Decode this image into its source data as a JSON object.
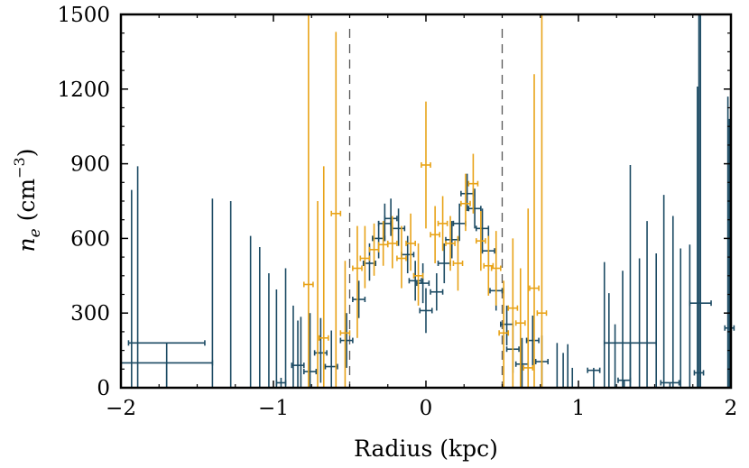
{
  "chart_data": {
    "type": "scatter",
    "title": "",
    "xlabel": "Radius (kpc)",
    "ylabel_main": "n",
    "ylabel_sub": "e",
    "ylabel_unit_open": " (cm",
    "ylabel_unit_sup": "−3",
    "ylabel_unit_close": ")",
    "xlim": [
      -2,
      2
    ],
    "ylim": [
      0,
      1500
    ],
    "xticks": [
      -2,
      -1,
      0,
      1,
      2
    ],
    "xtick_labels": [
      "−2",
      "−1",
      "0",
      "1",
      "2"
    ],
    "yticks": [
      0,
      300,
      600,
      900,
      1200,
      1500
    ],
    "ytick_labels": [
      "0",
      "300",
      "600",
      "900",
      "1200",
      "1500"
    ],
    "vlines": [
      -0.5,
      0.5
    ],
    "colors": {
      "blue": "#1b4a63",
      "orange": "#e8a318",
      "vline": "#555555"
    },
    "series": [
      {
        "name": "blue",
        "color": "#1b4a63",
        "points": [
          {
            "x": -1.7,
            "y": 180,
            "xerr": 0.25,
            "ylo": 0,
            "yhi": 180
          },
          {
            "x": -1.7,
            "y": 100,
            "xerr": 0.3,
            "ylo": 0,
            "yhi": 100
          },
          {
            "x": -1.93,
            "y": 0,
            "xerr": 0.02,
            "ylo": 0,
            "yhi": 795
          },
          {
            "x": -1.89,
            "y": 0,
            "xerr": 0.02,
            "ylo": 0,
            "yhi": 890
          },
          {
            "x": -1.4,
            "y": 0,
            "xerr": 0.02,
            "ylo": 0,
            "yhi": 760
          },
          {
            "x": -1.28,
            "y": 0,
            "xerr": 0.02,
            "ylo": 0,
            "yhi": 750
          },
          {
            "x": -1.15,
            "y": 0,
            "xerr": 0.02,
            "ylo": 0,
            "yhi": 610
          },
          {
            "x": -1.09,
            "y": 0,
            "xerr": 0.02,
            "ylo": 0,
            "yhi": 565
          },
          {
            "x": -1.03,
            "y": 0,
            "xerr": 0.02,
            "ylo": 0,
            "yhi": 460
          },
          {
            "x": -0.98,
            "y": 0,
            "xerr": 0.02,
            "ylo": 0,
            "yhi": 395
          },
          {
            "x": -0.92,
            "y": 0,
            "xerr": 0.02,
            "ylo": 0,
            "yhi": 480
          },
          {
            "x": -0.87,
            "y": 0,
            "xerr": 0.02,
            "ylo": 0,
            "yhi": 330
          },
          {
            "x": -0.82,
            "y": 0,
            "xerr": 0.02,
            "ylo": 0,
            "yhi": 285
          },
          {
            "x": -0.95,
            "y": 20,
            "xerr": 0.03,
            "ylo": 0,
            "yhi": 40
          },
          {
            "x": -0.84,
            "y": 90,
            "xerr": 0.04,
            "ylo": 0,
            "yhi": 270
          },
          {
            "x": -0.76,
            "y": 65,
            "xerr": 0.04,
            "ylo": 0,
            "yhi": 300
          },
          {
            "x": -0.69,
            "y": 140,
            "xerr": 0.04,
            "ylo": 20,
            "yhi": 280
          },
          {
            "x": -0.62,
            "y": 85,
            "xerr": 0.04,
            "ylo": 0,
            "yhi": 230
          },
          {
            "x": -0.52,
            "y": 190,
            "xerr": 0.04,
            "ylo": 80,
            "yhi": 300
          },
          {
            "x": -0.44,
            "y": 355,
            "xerr": 0.04,
            "ylo": 280,
            "yhi": 430
          },
          {
            "x": -0.37,
            "y": 500,
            "xerr": 0.04,
            "ylo": 430,
            "yhi": 580
          },
          {
            "x": -0.31,
            "y": 600,
            "xerr": 0.04,
            "ylo": 520,
            "yhi": 670
          },
          {
            "x": -0.27,
            "y": 660,
            "xerr": 0.04,
            "ylo": 590,
            "yhi": 740
          },
          {
            "x": -0.23,
            "y": 680,
            "xerr": 0.04,
            "ylo": 610,
            "yhi": 760
          },
          {
            "x": -0.18,
            "y": 640,
            "xerr": 0.04,
            "ylo": 570,
            "yhi": 720
          },
          {
            "x": -0.12,
            "y": 535,
            "xerr": 0.04,
            "ylo": 460,
            "yhi": 610
          },
          {
            "x": -0.07,
            "y": 430,
            "xerr": 0.04,
            "ylo": 350,
            "yhi": 510
          },
          {
            "x": -0.02,
            "y": 420,
            "xerr": 0.04,
            "ylo": 340,
            "yhi": 500
          },
          {
            "x": 0.0,
            "y": 310,
            "xerr": 0.04,
            "ylo": 220,
            "yhi": 400
          },
          {
            "x": 0.07,
            "y": 385,
            "xerr": 0.04,
            "ylo": 310,
            "yhi": 460
          },
          {
            "x": 0.12,
            "y": 500,
            "xerr": 0.04,
            "ylo": 420,
            "yhi": 580
          },
          {
            "x": 0.17,
            "y": 595,
            "xerr": 0.04,
            "ylo": 520,
            "yhi": 670
          },
          {
            "x": 0.22,
            "y": 660,
            "xerr": 0.04,
            "ylo": 590,
            "yhi": 740
          },
          {
            "x": 0.27,
            "y": 780,
            "xerr": 0.04,
            "ylo": 710,
            "yhi": 860
          },
          {
            "x": 0.32,
            "y": 720,
            "xerr": 0.04,
            "ylo": 640,
            "yhi": 800
          },
          {
            "x": 0.37,
            "y": 640,
            "xerr": 0.04,
            "ylo": 560,
            "yhi": 720
          },
          {
            "x": 0.41,
            "y": 550,
            "xerr": 0.04,
            "ylo": 470,
            "yhi": 630
          },
          {
            "x": 0.46,
            "y": 390,
            "xerr": 0.04,
            "ylo": 310,
            "yhi": 470
          },
          {
            "x": 0.53,
            "y": 255,
            "xerr": 0.04,
            "ylo": 170,
            "yhi": 330
          },
          {
            "x": 0.57,
            "y": 155,
            "xerr": 0.04,
            "ylo": 60,
            "yhi": 250
          },
          {
            "x": 0.63,
            "y": 95,
            "xerr": 0.04,
            "ylo": 0,
            "yhi": 200
          },
          {
            "x": 0.7,
            "y": 190,
            "xerr": 0.04,
            "ylo": 90,
            "yhi": 290
          },
          {
            "x": 0.76,
            "y": 105,
            "xerr": 0.04,
            "ylo": 0,
            "yhi": 210
          },
          {
            "x": 0.86,
            "y": 0,
            "xerr": 0.02,
            "ylo": 0,
            "yhi": 180
          },
          {
            "x": 0.9,
            "y": 0,
            "xerr": 0.02,
            "ylo": 0,
            "yhi": 140
          },
          {
            "x": 0.93,
            "y": 0,
            "xerr": 0.02,
            "ylo": 0,
            "yhi": 175
          },
          {
            "x": 0.96,
            "y": 0,
            "xerr": 0.02,
            "ylo": 0,
            "yhi": 80
          },
          {
            "x": 1.1,
            "y": 70,
            "xerr": 0.04,
            "ylo": 0,
            "yhi": 80
          },
          {
            "x": 1.2,
            "y": 0,
            "xerr": 0.02,
            "ylo": 0,
            "yhi": 380
          },
          {
            "x": 1.24,
            "y": 0,
            "xerr": 0.02,
            "ylo": 0,
            "yhi": 255
          },
          {
            "x": 1.34,
            "y": 180,
            "xerr": 0.17,
            "ylo": 0,
            "yhi": 180
          },
          {
            "x": 1.3,
            "y": 30,
            "xerr": 0.04,
            "ylo": 0,
            "yhi": 30
          },
          {
            "x": 1.17,
            "y": 0,
            "xerr": 0.02,
            "ylo": 0,
            "yhi": 505
          },
          {
            "x": 1.29,
            "y": 0,
            "xerr": 0.02,
            "ylo": 0,
            "yhi": 470
          },
          {
            "x": 1.34,
            "y": 0,
            "xerr": 0.02,
            "ylo": 0,
            "yhi": 895
          },
          {
            "x": 1.4,
            "y": 0,
            "xerr": 0.02,
            "ylo": 0,
            "yhi": 520
          },
          {
            "x": 1.45,
            "y": 0,
            "xerr": 0.02,
            "ylo": 0,
            "yhi": 670
          },
          {
            "x": 1.51,
            "y": 0,
            "xerr": 0.02,
            "ylo": 0,
            "yhi": 540
          },
          {
            "x": 1.56,
            "y": 0,
            "xerr": 0.02,
            "ylo": 0,
            "yhi": 775
          },
          {
            "x": 1.6,
            "y": 20,
            "xerr": 0.06,
            "ylo": 0,
            "yhi": 20
          },
          {
            "x": 1.62,
            "y": 0,
            "xerr": 0.02,
            "ylo": 0,
            "yhi": 690
          },
          {
            "x": 1.67,
            "y": 0,
            "xerr": 0.02,
            "ylo": 0,
            "yhi": 560
          },
          {
            "x": 1.73,
            "y": 0,
            "xerr": 0.02,
            "ylo": 0,
            "yhi": 575
          },
          {
            "x": 1.78,
            "y": 0,
            "xerr": 0.02,
            "ylo": 0,
            "yhi": 1210
          },
          {
            "x": 1.8,
            "y": 340,
            "xerr": 0.07,
            "ylo": 0,
            "yhi": 1500
          },
          {
            "x": 1.79,
            "y": 60,
            "xerr": 0.03,
            "ylo": 0,
            "yhi": 1500
          },
          {
            "x": 1.99,
            "y": 240,
            "xerr": 0.03,
            "ylo": 0,
            "yhi": 1080
          },
          {
            "x": 1.98,
            "y": 0,
            "xerr": 0.02,
            "ylo": 0,
            "yhi": 1170
          }
        ]
      },
      {
        "name": "orange",
        "color": "#e8a318",
        "points": [
          {
            "x": -0.77,
            "y": 415,
            "xerr": 0.03,
            "ylo": 0,
            "yhi": 1500
          },
          {
            "x": -0.71,
            "y": 0,
            "xerr": 0.02,
            "ylo": 0,
            "yhi": 750
          },
          {
            "x": -0.67,
            "y": 200,
            "xerr": 0.03,
            "ylo": 0,
            "yhi": 890
          },
          {
            "x": -0.59,
            "y": 700,
            "xerr": 0.03,
            "ylo": 0,
            "yhi": 1430
          },
          {
            "x": -0.53,
            "y": 220,
            "xerr": 0.03,
            "ylo": 0,
            "yhi": 510
          },
          {
            "x": -0.45,
            "y": 480,
            "xerr": 0.03,
            "ylo": 200,
            "yhi": 650
          },
          {
            "x": -0.4,
            "y": 520,
            "xerr": 0.03,
            "ylo": 400,
            "yhi": 650
          },
          {
            "x": -0.34,
            "y": 555,
            "xerr": 0.03,
            "ylo": 450,
            "yhi": 660
          },
          {
            "x": -0.28,
            "y": 575,
            "xerr": 0.03,
            "ylo": 490,
            "yhi": 670
          },
          {
            "x": -0.22,
            "y": 580,
            "xerr": 0.03,
            "ylo": 480,
            "yhi": 690
          },
          {
            "x": -0.16,
            "y": 520,
            "xerr": 0.03,
            "ylo": 400,
            "yhi": 650
          },
          {
            "x": -0.1,
            "y": 580,
            "xerr": 0.03,
            "ylo": 470,
            "yhi": 700
          },
          {
            "x": -0.05,
            "y": 450,
            "xerr": 0.03,
            "ylo": 330,
            "yhi": 580
          },
          {
            "x": 0.0,
            "y": 895,
            "xerr": 0.03,
            "ylo": 640,
            "yhi": 1150
          },
          {
            "x": 0.06,
            "y": 615,
            "xerr": 0.03,
            "ylo": 500,
            "yhi": 730
          },
          {
            "x": 0.11,
            "y": 660,
            "xerr": 0.03,
            "ylo": 550,
            "yhi": 770
          },
          {
            "x": 0.16,
            "y": 580,
            "xerr": 0.03,
            "ylo": 470,
            "yhi": 690
          },
          {
            "x": 0.21,
            "y": 500,
            "xerr": 0.03,
            "ylo": 390,
            "yhi": 610
          },
          {
            "x": 0.26,
            "y": 740,
            "xerr": 0.03,
            "ylo": 630,
            "yhi": 860
          },
          {
            "x": 0.31,
            "y": 820,
            "xerr": 0.03,
            "ylo": 700,
            "yhi": 940
          },
          {
            "x": 0.36,
            "y": 590,
            "xerr": 0.03,
            "ylo": 470,
            "yhi": 710
          },
          {
            "x": 0.41,
            "y": 490,
            "xerr": 0.03,
            "ylo": 370,
            "yhi": 610
          },
          {
            "x": 0.46,
            "y": 480,
            "xerr": 0.03,
            "ylo": 330,
            "yhi": 630
          },
          {
            "x": 0.51,
            "y": 220,
            "xerr": 0.03,
            "ylo": 0,
            "yhi": 430
          },
          {
            "x": 0.57,
            "y": 320,
            "xerr": 0.03,
            "ylo": 0,
            "yhi": 600
          },
          {
            "x": 0.62,
            "y": 260,
            "xerr": 0.03,
            "ylo": 0,
            "yhi": 480
          },
          {
            "x": 0.67,
            "y": 80,
            "xerr": 0.03,
            "ylo": 0,
            "yhi": 720
          },
          {
            "x": 0.71,
            "y": 400,
            "xerr": 0.03,
            "ylo": 0,
            "yhi": 1260
          },
          {
            "x": 0.76,
            "y": 300,
            "xerr": 0.03,
            "ylo": 0,
            "yhi": 1500
          }
        ]
      }
    ]
  }
}
